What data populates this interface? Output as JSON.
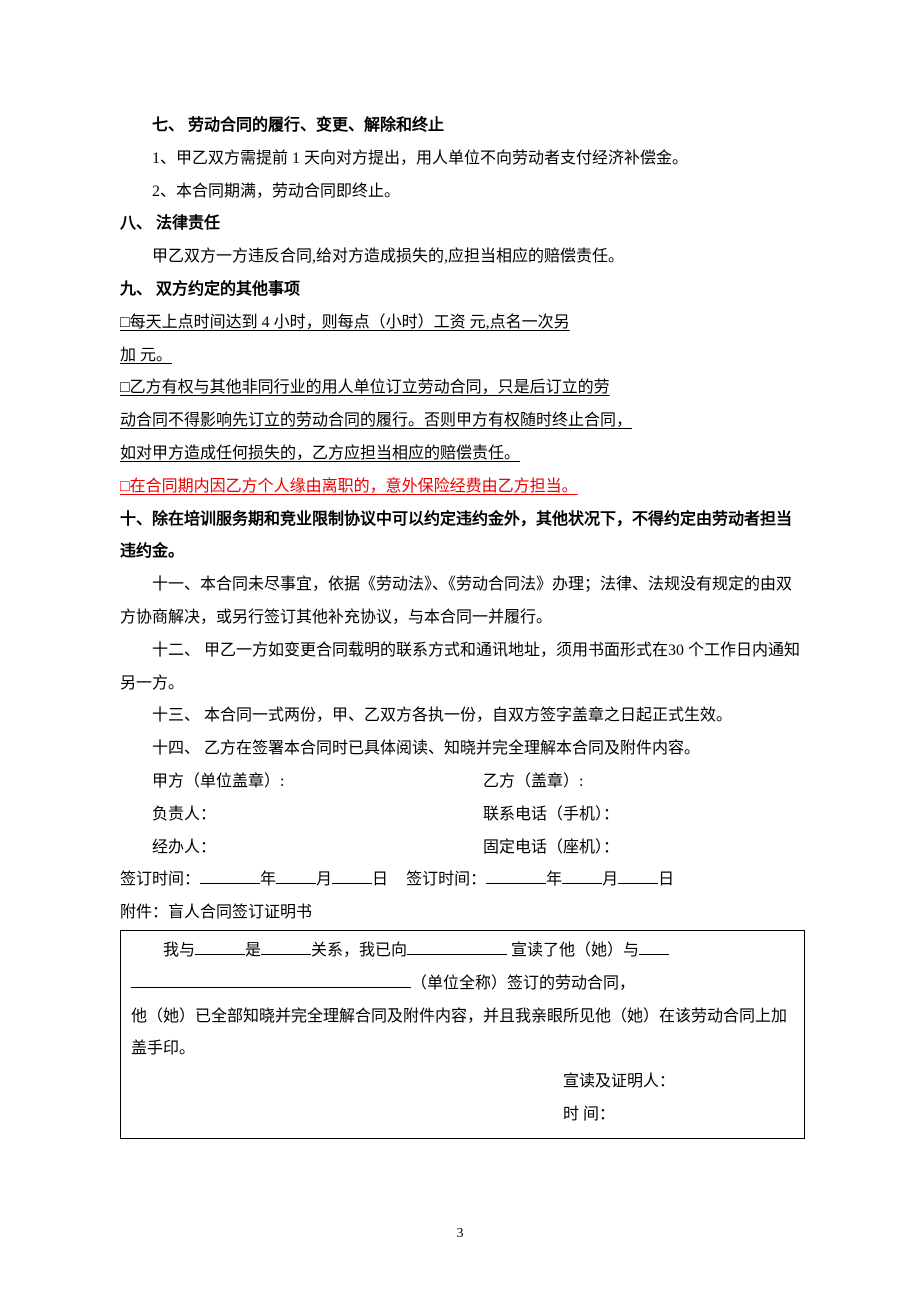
{
  "colors": {
    "text": "#000000",
    "red": "#ee0000",
    "background": "#ffffff",
    "border": "#000000"
  },
  "typography": {
    "font_family": "SimSun",
    "body_fontsize": 16,
    "line_height": 2.05
  },
  "s7": {
    "heading": "七、 劳动合同的履行、变更、解除和终止",
    "p1": "1、甲乙双方需提前 1 天向对方提出，用人单位不向劳动者支付经济补偿金。",
    "p2": "2、本合同期满，劳动合同即终止。"
  },
  "s8": {
    "heading": "八、 法律责任",
    "p1": "甲乙双方一方违反合同,给对方造成损失的,应担当相应的赔偿责任。"
  },
  "s9": {
    "heading": "九、 双方约定的其他事项",
    "l1a": "  □每天上点时间达到 4 小时，则每点（小时）工资     元,点名一次另",
    "l1b": "加     元。                                                        ",
    "l2a": "  □乙方有权与其他非同行业的用人单位订立劳动合同，只是后订立的劳",
    "l2b": "动合同不得影响先订立的劳动合同的履行。否则甲方有权随时终止合同，",
    "l2c": "如对甲方造成任何损失的，乙方应担当相应的赔偿责任。                ",
    "l3": "  □在合同期内因乙方个人缘由离职的，意外保险经费由乙方担当。      "
  },
  "s10": {
    "heading": "  十、除在培训服务期和竞业限制协议中可以约定违约金外，其他状况下，不得约定由劳动者担当违约金。"
  },
  "s11": "十一、本合同未尽事宜，依据《劳动法》、《劳动合同法》办理；法律、法规没有规定的由双方协商解决，或另行签订其他补充协议，与本合同一并履行。",
  "s12": "十二、 甲乙一方如变更合同载明的联系方式和通讯地址，须用书面形式在30 个工作日内通知另一方。",
  "s13": "十三、 本合同一式两份，甲、乙双方各执一份，自双方签字盖章之日起正式生效。",
  "s14": "十四、 乙方在签署本合同时已具体阅读、知晓并完全理解本合同及附件内容。",
  "sig": {
    "a_seal": "甲方（单位盖章）:",
    "b_seal": "乙方（盖章）:",
    "a_person": "负责人：",
    "b_phone": "联系电话（手机）：",
    "a_handler": "经办人：",
    "b_fixed": "固定电话（座机）："
  },
  "date": {
    "label": "签订时间：",
    "year": "年",
    "month": "月",
    "day": "日"
  },
  "attachment": {
    "title": "附件：盲人合同签订证明书",
    "t_indent": "        我与",
    "t_is": "是",
    "t_rel": "关系，我已向",
    "t_read": " 宣读了他（她）与",
    "t_unit": "（单位全称）签订的劳动合同，",
    "t_body": "他（她）已全部知晓并完全理解合同及附件内容，并且我亲眼所见他（她）在该劳动合同上加盖手印。",
    "sig1": "宣读及证明人：",
    "sig2": "时        间："
  },
  "page_number": "3"
}
